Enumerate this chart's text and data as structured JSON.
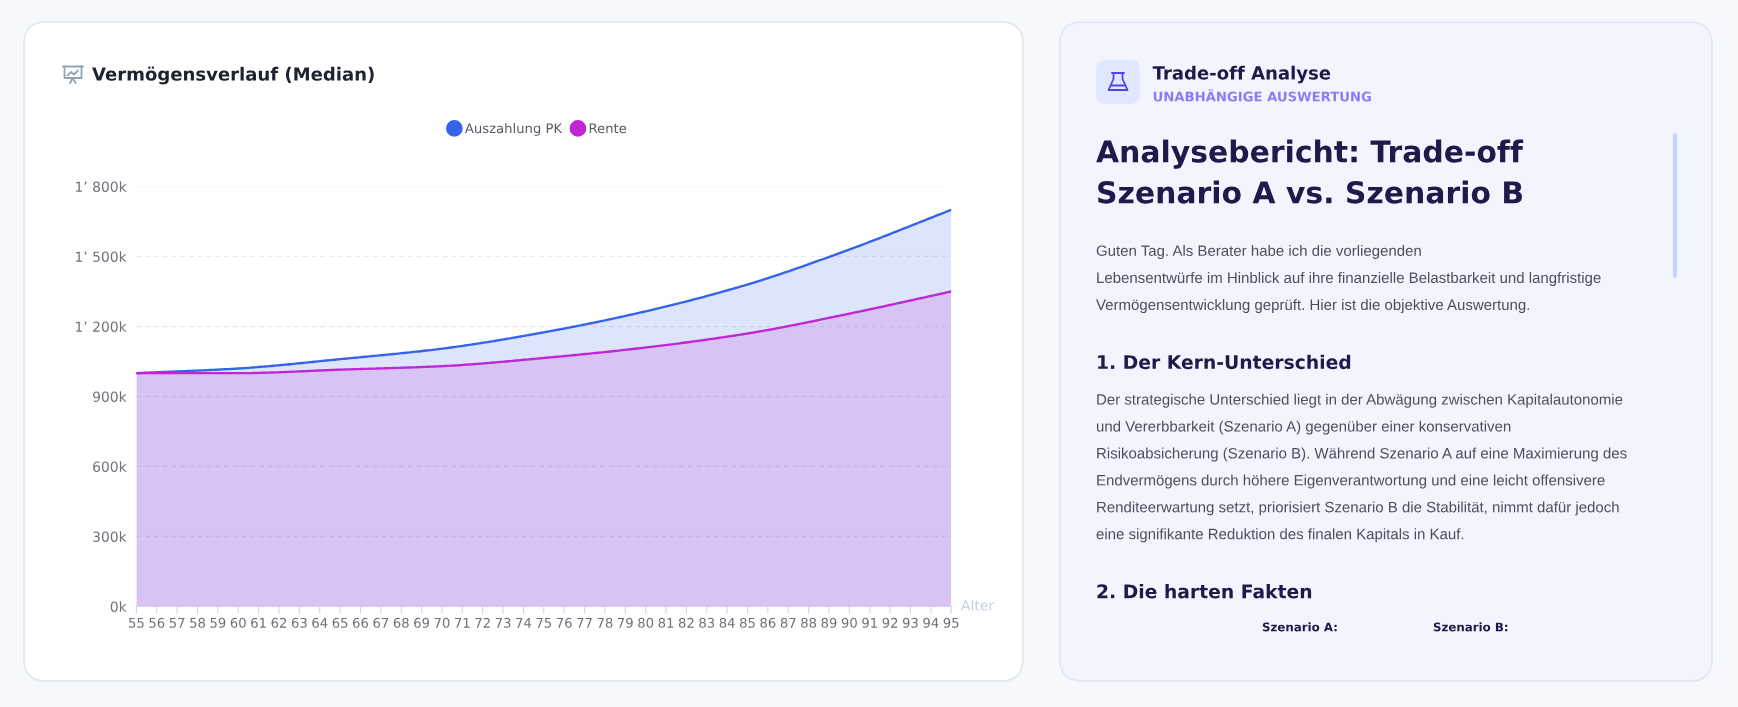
{
  "chart_data": [
    {
      "type": "area",
      "title": "Vermögensverlauf (Median)",
      "xlabel": "Alter",
      "x": [
        55,
        60,
        65,
        70,
        75,
        80,
        85,
        90,
        95
      ],
      "series": [
        {
          "name": "Auszahlung PK",
          "color": "#3563eb",
          "values": [
            1000000,
            1020000,
            1060000,
            1105000,
            1175000,
            1265000,
            1380000,
            1530000,
            1700000
          ]
        },
        {
          "name": "Rente",
          "color": "#c026d3",
          "values": [
            1000000,
            1000000,
            1015000,
            1030000,
            1065000,
            1110000,
            1170000,
            1255000,
            1350000
          ]
        }
      ],
      "xlim": [
        55,
        95
      ],
      "xticks": [
        55,
        56,
        57,
        58,
        59,
        60,
        61,
        62,
        63,
        64,
        65,
        66,
        67,
        68,
        69,
        70,
        71,
        72,
        73,
        74,
        75,
        76,
        77,
        78,
        79,
        80,
        81,
        82,
        83,
        84,
        85,
        86,
        87,
        88,
        89,
        90,
        91,
        92,
        93,
        94,
        95
      ],
      "ylim": [
        0,
        1800000
      ],
      "yticks": [
        {
          "value": 0,
          "label": "0k"
        },
        {
          "value": 300000,
          "label": "300k"
        },
        {
          "value": 600000,
          "label": "600k"
        },
        {
          "value": 900000,
          "label": "900k"
        },
        {
          "value": 1200000,
          "label": "1’ 200k"
        },
        {
          "value": 1500000,
          "label": "1’ 500k"
        },
        {
          "value": 1800000,
          "label": "1’ 800k"
        }
      ],
      "grid": "y",
      "legend": "top"
    },
    {
      "type": "other",
      "title": "Trade-off Analyse",
      "subtitle": "UNABHÄNGIGE AUSWERTUNG",
      "annotations": [
        "Analysebericht: Trade-off\nSzenario A vs. Szenario B",
        "Guten Tag. Als Berater habe ich die vorliegenden\nLebensentwürfe im Hinblick auf ihre finanzielle Belastbarkeit und langfristige\nVermögensentwicklung geprüft. Hier ist die objektive Auswertung.",
        "1. Der Kern-Unterschied",
        "Der strategische Unterschied liegt in der Abwägung zwischen Kapitalautonomie\nund Vererbbarkeit (Szenario A) gegenüber einer konservativen\nRisikoabsicherung (Szenario B). Während Szenario A auf eine Maximierung des\nEndvermögens durch höhere Eigenverantwortung und eine leicht offensivere\nRenditeerwartung setzt, priorisiert Szenario B die Stabilität, nimmt dafür jedoch\neine signifikante Reduktion des finalen Kapitals in Kauf.",
        "2. Die harten Fakten",
        "Szenario A:",
        "Szenario B:"
      ]
    }
  ]
}
